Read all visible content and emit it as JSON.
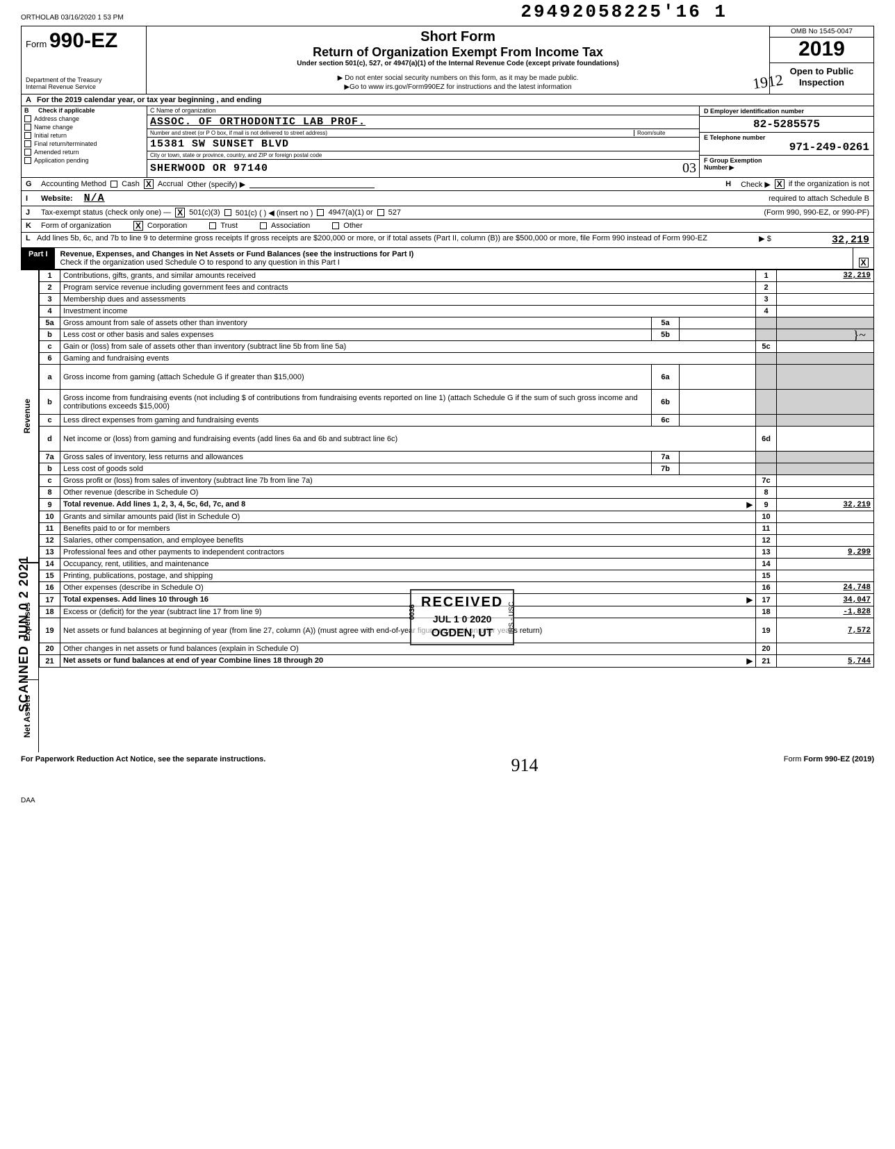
{
  "header_stamp": "ORTHOLAB 03/16/2020 1 53 PM",
  "dln": "29492058225'16  1",
  "form": {
    "prefix": "Form",
    "number": "990-EZ",
    "dept1": "Department of the Treasury",
    "dept2": "Internal Revenue Service",
    "title1": "Short Form",
    "title2": "Return of Organization Exempt From Income Tax",
    "subtitle": "Under section 501(c), 527, or 4947(a)(1) of the Internal Revenue Code (except private foundations)",
    "note1": "▶ Do not enter social security numbers on this form, as it may be made public.",
    "note2": "▶Go to www irs.gov/Form990EZ for instructions and the latest information",
    "omb": "OMB No 1545-0047",
    "year": "2019",
    "open1": "Open to Public",
    "open2": "Inspection",
    "hand_1912": "1912"
  },
  "line_a": "For the 2019 calendar year, or tax year beginning                         , and ending",
  "b": {
    "header": "Check if applicable",
    "opts": [
      "Address change",
      "Name change",
      "Initial return",
      "Final return/terminated",
      "Amended return",
      "Application pending"
    ],
    "c_label": "C  Name of organization",
    "name": "ASSOC. OF ORTHODONTIC LAB PROF.",
    "addr_label": "Number and street (or P O  box, if mail is not delivered to street address)",
    "room_label": "Room/suite",
    "address": "15381 SW SUNSET BLVD",
    "city_label": "City or town, state or province, country, and ZIP or foreign postal code",
    "city": "SHERWOOD                    OR 97140",
    "hand_03": "03",
    "d_label": "D  Employer identification number",
    "ein": "82-5285575",
    "e_label": "E  Telephone number",
    "phone": "971-249-0261",
    "f_label": "F  Group Exemption",
    "f_label2": "Number  ▶"
  },
  "g": {
    "label": "Accounting Method",
    "cash": "Cash",
    "accrual": "Accrual",
    "other": "Other (specify) ▶"
  },
  "h": {
    "label": "Check ▶",
    "text1": "if the organization is not",
    "text2": "required to attach Schedule B",
    "text3": "(Form 990, 990-EZ, or 990-PF)"
  },
  "i": {
    "label": "Website:",
    "val": "N/A"
  },
  "j": {
    "label": "Tax-exempt status (check only one) —",
    "o1": "501(c)(3)",
    "o2": "501(c) (        ) ◀ (insert no )",
    "o3": "4947(a)(1) or",
    "o4": "527"
  },
  "k": {
    "label": "Form of organization",
    "o1": "Corporation",
    "o2": "Trust",
    "o3": "Association",
    "o4": "Other"
  },
  "l": {
    "text": "Add lines 5b, 6c, and 7b to line 9 to determine gross receipts  If gross receipts are $200,000 or more, or if total assets (Part II, column (B)) are $500,000 or more, file Form 990 instead of Form 990-EZ",
    "arrow": "▶  $",
    "val": "32,219"
  },
  "part1": {
    "tab": "Part I",
    "title": "Revenue, Expenses, and Changes in Net Assets or Fund Balances (see the instructions for Part I)",
    "sub": "Check if the organization used Schedule O to respond to any question in this Part I",
    "x": "X"
  },
  "sidebar": {
    "revenue": "Revenue",
    "expenses": "Expenses",
    "netassets": "Net Assets",
    "scanned": "SCANNED JUN 0 2 2021"
  },
  "rows": [
    {
      "n": "1",
      "d": "Contributions, gifts, grants, and similar amounts received",
      "rn": "1",
      "rv": "32,219"
    },
    {
      "n": "2",
      "d": "Program service revenue including government fees and contracts",
      "rn": "2",
      "rv": ""
    },
    {
      "n": "3",
      "d": "Membership dues and assessments",
      "rn": "3",
      "rv": ""
    },
    {
      "n": "4",
      "d": "Investment income",
      "rn": "4",
      "rv": ""
    },
    {
      "n": "5a",
      "d": "Gross amount from sale of assets other than inventory",
      "mb": "5a",
      "grey": true
    },
    {
      "n": "b",
      "d": "Less  cost or other basis and sales expenses",
      "mb": "5b",
      "grey": true
    },
    {
      "n": "c",
      "d": "Gain or (loss) from sale of assets other than inventory (subtract line 5b from line 5a)",
      "rn": "5c",
      "rv": ""
    },
    {
      "n": "6",
      "d": "Gaming and fundraising events",
      "grey": true,
      "noR": true
    },
    {
      "n": "a",
      "d": "Gross income from gaming (attach Schedule G if greater than $15,000)",
      "mb": "6a",
      "grey": true,
      "tall": true
    },
    {
      "n": "b",
      "d": "Gross income from fundraising events (not including $                               of contributions from fundraising events reported on line 1) (attach Schedule G if the sum of such gross income and contributions exceeds $15,000)",
      "mb": "6b",
      "grey": true,
      "tall": true
    },
    {
      "n": "c",
      "d": "Less  direct expenses from gaming and fundraising events",
      "mb": "6c",
      "grey": true
    },
    {
      "n": "d",
      "d": "Net income or (loss) from gaming and fundraising events (add lines 6a and 6b and subtract line 6c)",
      "rn": "6d",
      "rv": "",
      "tall": true
    },
    {
      "n": "7a",
      "d": "Gross sales of inventory, less returns and allowances",
      "mb": "7a",
      "grey": true
    },
    {
      "n": "b",
      "d": "Less  cost of goods sold",
      "mb": "7b",
      "grey": true
    },
    {
      "n": "c",
      "d": "Gross profit or (loss) from sales of inventory (subtract line 7b from line 7a)",
      "rn": "7c",
      "rv": ""
    },
    {
      "n": "8",
      "d": "Other revenue (describe in Schedule O)",
      "rn": "8",
      "rv": ""
    },
    {
      "n": "9",
      "d": "Total revenue. Add lines 1, 2, 3, 4, 5c, 6d, 7c, and 8",
      "rn": "9",
      "rv": "32,219",
      "arrow": true,
      "bold": true
    },
    {
      "n": "10",
      "d": "Grants and similar amounts paid (list in Schedule O)",
      "rn": "10",
      "rv": ""
    },
    {
      "n": "11",
      "d": "Benefits paid to or for members",
      "rn": "11",
      "rv": ""
    },
    {
      "n": "12",
      "d": "Salaries, other compensation, and employee benefits",
      "rn": "12",
      "rv": ""
    },
    {
      "n": "13",
      "d": "Professional fees and other payments to independent contractors",
      "rn": "13",
      "rv": "9,299"
    },
    {
      "n": "14",
      "d": "Occupancy, rent, utilities, and maintenance",
      "rn": "14",
      "rv": ""
    },
    {
      "n": "15",
      "d": "Printing, publications, postage, and shipping",
      "rn": "15",
      "rv": ""
    },
    {
      "n": "16",
      "d": "Other expenses (describe in Schedule O)",
      "rn": "16",
      "rv": "24,748"
    },
    {
      "n": "17",
      "d": "Total expenses. Add lines 10 through 16",
      "rn": "17",
      "rv": "34,047",
      "arrow": true,
      "bold": true
    },
    {
      "n": "18",
      "d": "Excess or (deficit) for the year (subtract line 17 from line 9)",
      "rn": "18",
      "rv": "-1,828"
    },
    {
      "n": "19",
      "d": "Net assets or fund balances at beginning of year (from line 27, column (A)) (must agree with end-of-year figure reported on prior year's return)",
      "rn": "19",
      "rv": "7,572",
      "tall": true
    },
    {
      "n": "20",
      "d": "Other changes in net assets or fund balances (explain in Schedule O)",
      "rn": "20",
      "rv": ""
    },
    {
      "n": "21",
      "d": "Net assets or fund balances at end of year  Combine lines 18 through 20",
      "rn": "21",
      "rv": "5,744",
      "arrow": true,
      "bold": true
    }
  ],
  "stamp": {
    "r1": "RECEIVED",
    "r2": "JUL 1 0 2020",
    "r3": "OGDEN, UT",
    "side1": "0036",
    "side2": "IRS - USC"
  },
  "footer": {
    "left": "For Paperwork Reduction Act Notice, see the separate instructions.",
    "hand": "914",
    "right": "Form 990-EZ (2019)",
    "daa": "DAA"
  }
}
